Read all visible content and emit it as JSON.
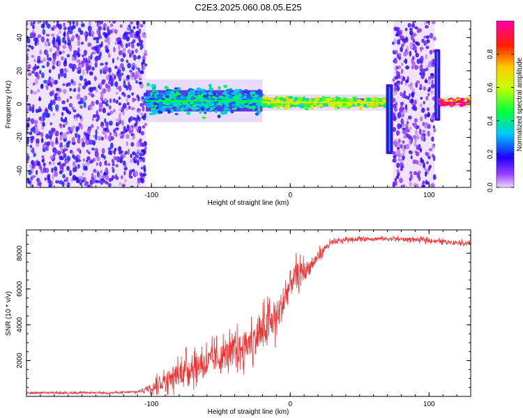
{
  "title": "C2E3.2025.060.08.05.E25",
  "chart_data": [
    {
      "type": "heatmap",
      "xlabel": "Height of straight line (km)",
      "ylabel": "Frequency (Hz)",
      "xlim": [
        -190,
        130
      ],
      "ylim": [
        -50,
        50
      ],
      "x_ticks": [
        -100,
        0,
        100
      ],
      "x_tick_labels": [
        "-100",
        "0",
        "100"
      ],
      "y_ticks": [
        -40,
        -20,
        0,
        20,
        40
      ],
      "y_tick_labels": [
        "-40",
        "-20",
        "0",
        "20",
        "40"
      ],
      "colorbar": {
        "label": "Normalized spectral amplitude",
        "range": [
          0,
          1
        ],
        "ticks": [
          0.0,
          0.2,
          0.4,
          0.6,
          0.8
        ],
        "tick_labels": [
          "0.0",
          "0.2",
          "0.4",
          "0.6",
          "0.8"
        ],
        "colors": [
          "#e8d8f8",
          "#7b00ff",
          "#0000ff",
          "#00ffff",
          "#00ff00",
          "#ffff00",
          "#ff0000",
          "#ff00aa"
        ]
      },
      "regions": [
        {
          "x_from": -190,
          "x_to": -104,
          "pattern": "noise",
          "freq_from": -50,
          "freq_to": 50,
          "level": 0.15
        },
        {
          "x_from": -104,
          "x_to": -20,
          "pattern": "carrier",
          "freq_center": 2,
          "freq_spread": 8,
          "level": 0.35
        },
        {
          "x_from": -20,
          "x_to": 69,
          "pattern": "carrier",
          "freq_center": 1,
          "freq_spread": 3,
          "level": 0.55
        },
        {
          "x_from": 69,
          "x_to": 74,
          "pattern": "spike",
          "freq_from": -30,
          "freq_to": 12,
          "level": 0.3
        },
        {
          "x_from": 74,
          "x_to": 104,
          "pattern": "noise",
          "freq_from": -50,
          "freq_to": 50,
          "level": 0.12
        },
        {
          "x_from": 104,
          "x_to": 108,
          "pattern": "spike",
          "freq_from": -10,
          "freq_to": 33,
          "level": 0.25
        },
        {
          "x_from": 108,
          "x_to": 130,
          "pattern": "carrier",
          "freq_center": 1,
          "freq_spread": 2,
          "level": 0.9
        }
      ]
    },
    {
      "type": "line",
      "xlabel": "Height of straight line (km)",
      "ylabel": "SNR (10 * v/v)",
      "xlim": [
        -190,
        130
      ],
      "ylim": [
        0,
        9300
      ],
      "x_ticks": [
        -100,
        0,
        100
      ],
      "x_tick_labels": [
        "-100",
        "0",
        "100"
      ],
      "y_ticks": [
        2000,
        4000,
        6000,
        8000
      ],
      "y_tick_labels": [
        "2000",
        "4000",
        "6000",
        "8000"
      ],
      "line_color": "#ee3333",
      "series": [
        {
          "x": [
            -190,
            -160,
            -130,
            -110,
            -100,
            -90,
            -80,
            -70,
            -60,
            -50,
            -40,
            -30,
            -20,
            -10,
            -5,
            0,
            5,
            10,
            15,
            20,
            25,
            30,
            40,
            50,
            60,
            70,
            80,
            90,
            100,
            110,
            120,
            130
          ],
          "y": [
            200,
            200,
            200,
            250,
            500,
            900,
            1300,
            1700,
            1900,
            2200,
            2500,
            2900,
            3600,
            4400,
            5200,
            6300,
            6800,
            7000,
            7300,
            7800,
            8300,
            8600,
            8750,
            8800,
            8820,
            8800,
            8780,
            8760,
            8700,
            8650,
            8600,
            8550
          ],
          "noise": [
            60,
            60,
            60,
            80,
            300,
            700,
            900,
            1000,
            1000,
            1000,
            1100,
            1200,
            1300,
            1300,
            1200,
            1100,
            900,
            700,
            600,
            400,
            250,
            200,
            150,
            150,
            150,
            150,
            150,
            150,
            150,
            150,
            150,
            150
          ]
        }
      ]
    }
  ]
}
